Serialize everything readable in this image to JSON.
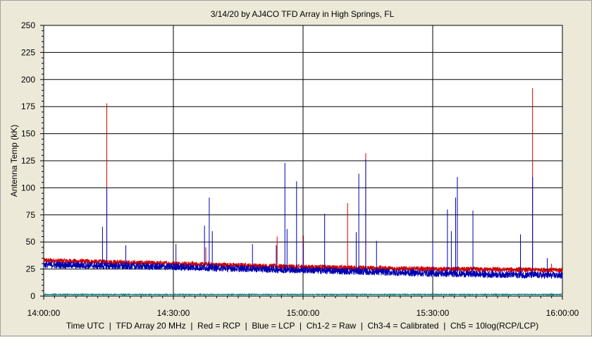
{
  "chart_data": {
    "type": "line",
    "title": "3/14/20  by  AJ4CO TFD Array  in  High Springs, FL",
    "ylabel": "Antenna Temp (kK)",
    "caption": "Time UTC  |  TFD Array 20 MHz  |  Red = RCP  |  Blue = LCP  |  Ch1-2 = Raw  |  Ch3-4 = Calibrated  |  Ch5 = 10log(RCP/LCP)",
    "ylim": [
      0,
      250
    ],
    "yticks": [
      "0",
      "25",
      "50",
      "75",
      "100",
      "125",
      "150",
      "175",
      "200",
      "225",
      "250"
    ],
    "xticks": [
      "14:00:00",
      "14:30:00",
      "15:00:00",
      "15:30:00",
      "16:00:00"
    ],
    "xlim_minutes": [
      0,
      120
    ],
    "grid": true,
    "colors": {
      "rcp": "#d00000",
      "lcp": "#0000b0",
      "ch5": "#008080"
    },
    "series": [
      {
        "name": "Red = RCP",
        "baseline": [
          [
            0,
            33
          ],
          [
            30,
            30
          ],
          [
            60,
            27
          ],
          [
            90,
            25
          ],
          [
            120,
            24
          ]
        ],
        "spikes": [
          [
            14.6,
            178
          ],
          [
            37.5,
            45
          ],
          [
            54,
            55
          ],
          [
            60.1,
            56
          ],
          [
            70.3,
            86
          ],
          [
            74.5,
            132
          ],
          [
            113.1,
            192
          ],
          [
            117.5,
            30
          ]
        ]
      },
      {
        "name": "Blue = LCP",
        "baseline": [
          [
            0,
            29
          ],
          [
            30,
            27
          ],
          [
            60,
            24
          ],
          [
            90,
            21
          ],
          [
            120,
            19
          ]
        ],
        "spikes": [
          [
            13.6,
            64
          ],
          [
            14.6,
            100
          ],
          [
            19,
            47
          ],
          [
            30.6,
            48
          ],
          [
            37.2,
            65
          ],
          [
            38.3,
            91
          ],
          [
            39,
            60
          ],
          [
            48.3,
            48
          ],
          [
            53.8,
            47
          ],
          [
            55.8,
            123
          ],
          [
            56.3,
            62
          ],
          [
            58.5,
            106
          ],
          [
            60,
            50
          ],
          [
            65,
            76
          ],
          [
            72.3,
            59
          ],
          [
            72.9,
            113
          ],
          [
            74.5,
            126
          ],
          [
            77,
            51
          ],
          [
            90,
            50
          ],
          [
            93.4,
            80
          ],
          [
            94.3,
            60
          ],
          [
            95.3,
            91
          ],
          [
            95.7,
            110
          ],
          [
            99.3,
            79
          ],
          [
            110.3,
            57
          ],
          [
            113.1,
            110
          ],
          [
            116.5,
            35
          ]
        ]
      },
      {
        "name": "Ch5 = 10log(RCP/LCP)",
        "baseline": [
          [
            0,
            1.5
          ],
          [
            120,
            1.5
          ]
        ],
        "spikes": []
      }
    ]
  }
}
